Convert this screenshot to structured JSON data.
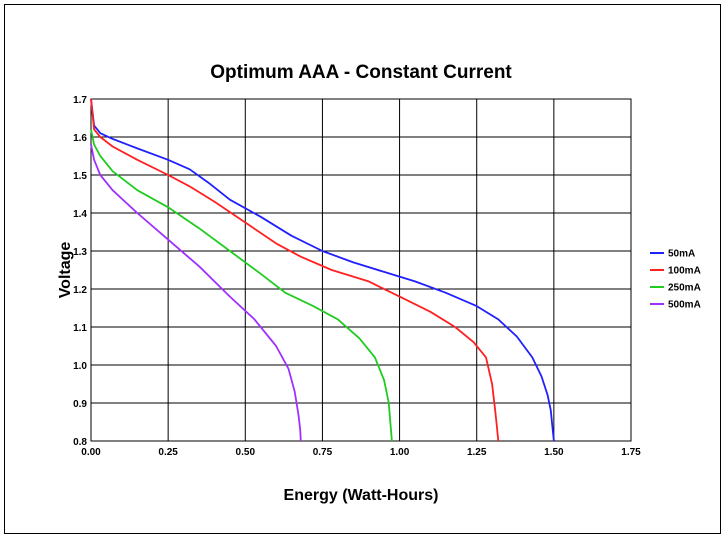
{
  "chart_data": {
    "type": "line",
    "title": "Optimum AAA - Constant Current",
    "xlabel": "Energy (Watt-Hours)",
    "ylabel": "Voltage",
    "xlim": [
      0,
      1.75
    ],
    "ylim": [
      0.8,
      1.7
    ],
    "x_ticks": [
      "0.00",
      "0.25",
      "0.50",
      "0.75",
      "1.00",
      "1.25",
      "1.50",
      "1.75"
    ],
    "y_ticks": [
      "0.8",
      "0.9",
      "1.0",
      "1.1",
      "1.2",
      "1.3",
      "1.4",
      "1.5",
      "1.6",
      "1.7"
    ],
    "grid": true,
    "legend_position": "right",
    "series": [
      {
        "name": "50mA",
        "color": "#2020ff",
        "points": [
          [
            0.0,
            1.7
          ],
          [
            0.01,
            1.63
          ],
          [
            0.03,
            1.61
          ],
          [
            0.07,
            1.595
          ],
          [
            0.15,
            1.57
          ],
          [
            0.25,
            1.54
          ],
          [
            0.32,
            1.515
          ],
          [
            0.38,
            1.48
          ],
          [
            0.45,
            1.435
          ],
          [
            0.55,
            1.39
          ],
          [
            0.65,
            1.34
          ],
          [
            0.75,
            1.3
          ],
          [
            0.85,
            1.27
          ],
          [
            0.95,
            1.245
          ],
          [
            1.05,
            1.22
          ],
          [
            1.15,
            1.19
          ],
          [
            1.25,
            1.155
          ],
          [
            1.32,
            1.12
          ],
          [
            1.38,
            1.075
          ],
          [
            1.43,
            1.02
          ],
          [
            1.46,
            0.97
          ],
          [
            1.48,
            0.92
          ],
          [
            1.49,
            0.88
          ],
          [
            1.495,
            0.84
          ],
          [
            1.5,
            0.8
          ]
        ]
      },
      {
        "name": "100mA",
        "color": "#ff2020",
        "points": [
          [
            0.0,
            1.7
          ],
          [
            0.01,
            1.62
          ],
          [
            0.03,
            1.6
          ],
          [
            0.07,
            1.575
          ],
          [
            0.15,
            1.54
          ],
          [
            0.25,
            1.5
          ],
          [
            0.32,
            1.47
          ],
          [
            0.4,
            1.43
          ],
          [
            0.5,
            1.375
          ],
          [
            0.6,
            1.32
          ],
          [
            0.68,
            1.285
          ],
          [
            0.78,
            1.25
          ],
          [
            0.9,
            1.22
          ],
          [
            1.0,
            1.18
          ],
          [
            1.1,
            1.14
          ],
          [
            1.18,
            1.1
          ],
          [
            1.24,
            1.06
          ],
          [
            1.28,
            1.02
          ],
          [
            1.3,
            0.95
          ],
          [
            1.31,
            0.88
          ],
          [
            1.315,
            0.84
          ],
          [
            1.32,
            0.8
          ]
        ]
      },
      {
        "name": "250mA",
        "color": "#20cc20",
        "points": [
          [
            0.0,
            1.62
          ],
          [
            0.01,
            1.58
          ],
          [
            0.03,
            1.55
          ],
          [
            0.07,
            1.51
          ],
          [
            0.15,
            1.46
          ],
          [
            0.25,
            1.415
          ],
          [
            0.35,
            1.36
          ],
          [
            0.45,
            1.3
          ],
          [
            0.55,
            1.24
          ],
          [
            0.63,
            1.19
          ],
          [
            0.72,
            1.155
          ],
          [
            0.8,
            1.12
          ],
          [
            0.87,
            1.07
          ],
          [
            0.92,
            1.02
          ],
          [
            0.95,
            0.96
          ],
          [
            0.965,
            0.9
          ],
          [
            0.97,
            0.85
          ],
          [
            0.975,
            0.8
          ]
        ]
      },
      {
        "name": "500mA",
        "color": "#a030ff",
        "points": [
          [
            0.0,
            1.58
          ],
          [
            0.01,
            1.54
          ],
          [
            0.03,
            1.5
          ],
          [
            0.07,
            1.46
          ],
          [
            0.15,
            1.4
          ],
          [
            0.25,
            1.33
          ],
          [
            0.35,
            1.26
          ],
          [
            0.45,
            1.18
          ],
          [
            0.53,
            1.12
          ],
          [
            0.6,
            1.05
          ],
          [
            0.64,
            0.99
          ],
          [
            0.66,
            0.93
          ],
          [
            0.672,
            0.87
          ],
          [
            0.678,
            0.83
          ],
          [
            0.68,
            0.8
          ]
        ]
      }
    ]
  }
}
